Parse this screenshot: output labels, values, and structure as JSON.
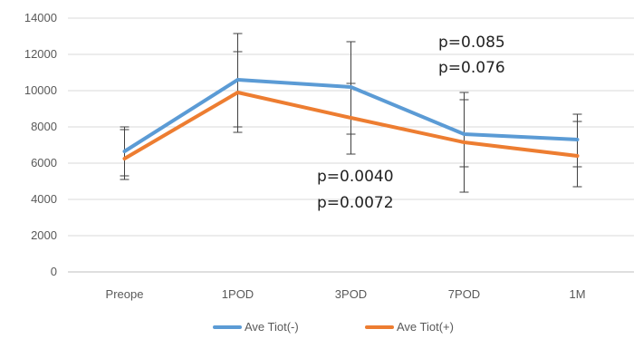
{
  "chart_data": {
    "type": "line",
    "categories": [
      "Preope",
      "1POD",
      "3POD",
      "7POD",
      "1M"
    ],
    "ylim": [
      0,
      14000
    ],
    "yticks": [
      0,
      2000,
      4000,
      6000,
      8000,
      10000,
      12000,
      14000
    ],
    "grid": "horizontal",
    "legend_position": "bottom",
    "series": [
      {
        "name": "Ave Tiot(-)",
        "color": "#5b9bd5",
        "values": [
          6650,
          10600,
          10200,
          7600,
          7300
        ],
        "err_low": [
          5300,
          8000,
          7600,
          4400,
          5800
        ],
        "err_high": [
          8000,
          13150,
          12700,
          9900,
          8700
        ]
      },
      {
        "name": "Ave Tiot(+)",
        "color": "#ed7d31",
        "values": [
          6250,
          9900,
          8500,
          7150,
          6400
        ],
        "err_low": [
          5100,
          7700,
          6500,
          5800,
          4700
        ],
        "err_high": [
          7850,
          12150,
          10400,
          9500,
          8300
        ]
      }
    ],
    "annotations": [
      {
        "lines": [
          "p=0.085",
          "p=0.076"
        ]
      },
      {
        "lines": [
          "p=0.0040",
          "p=0.0072"
        ]
      }
    ]
  }
}
